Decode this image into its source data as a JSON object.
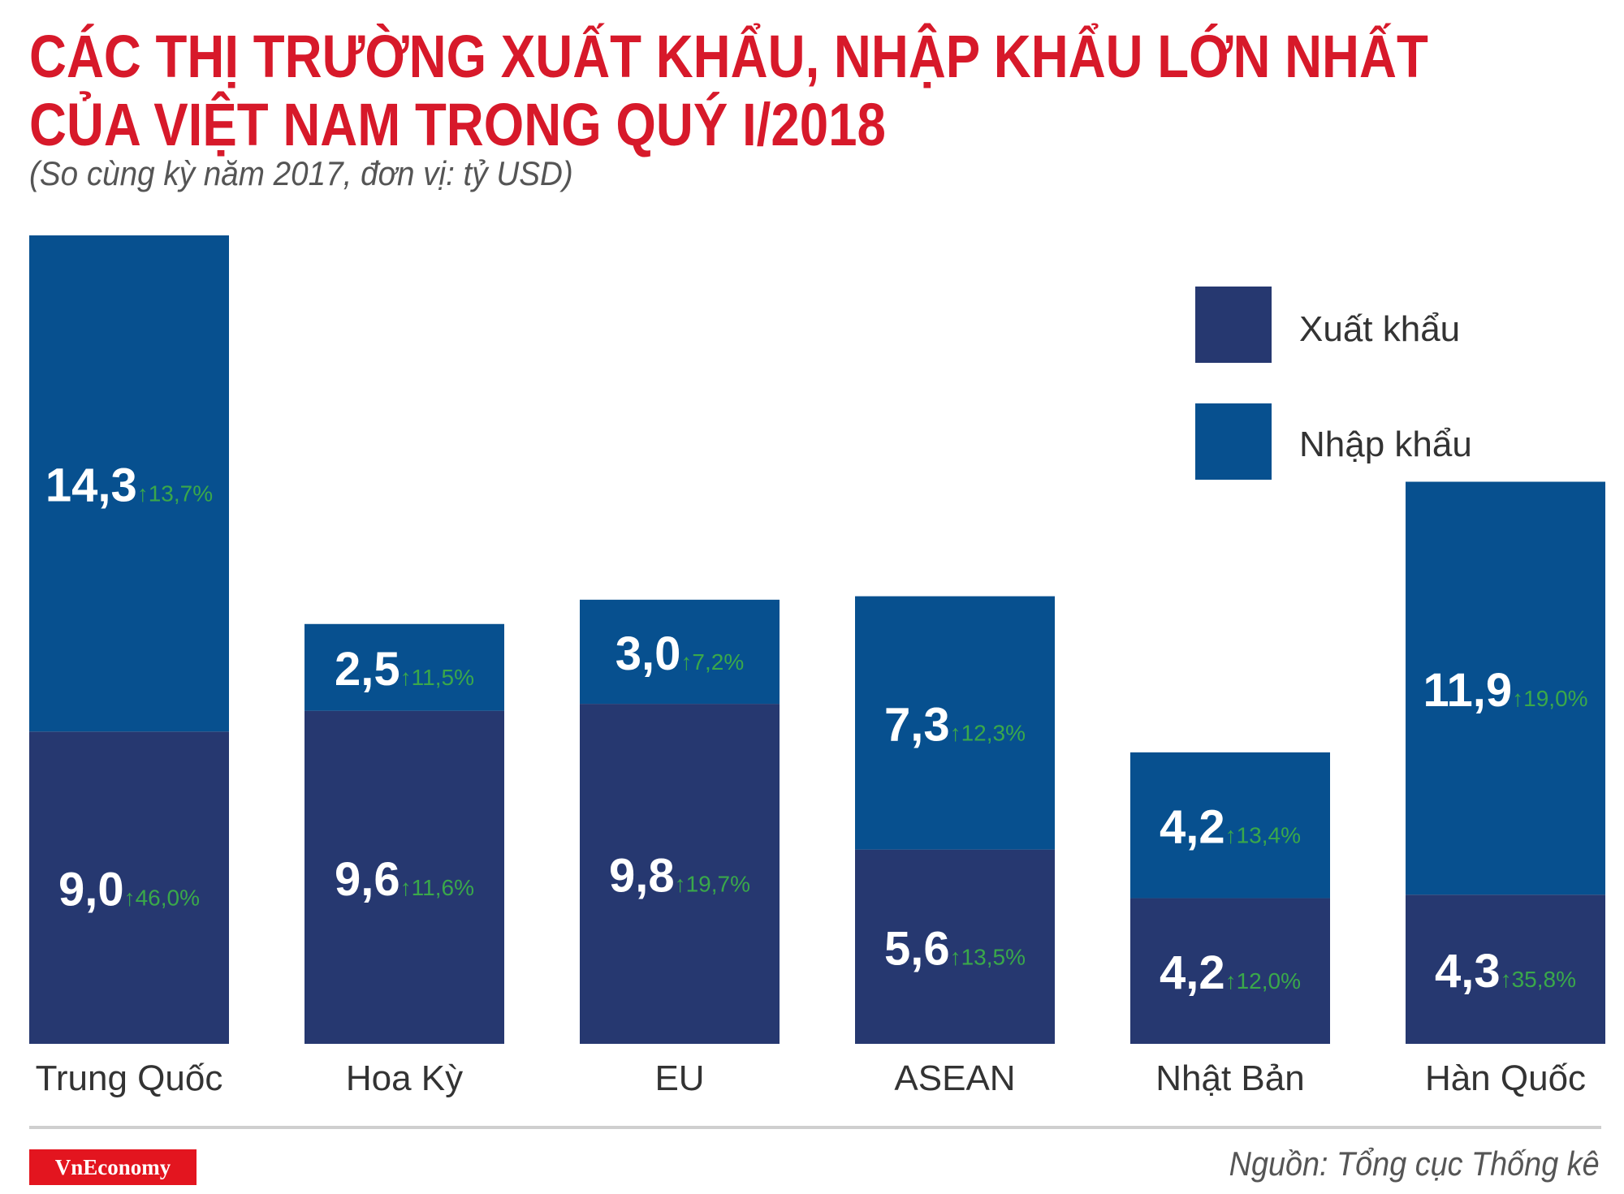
{
  "header": {
    "title_line1": "CÁC THỊ TRƯỜNG XUẤT KHẨU, NHẬP KHẨU LỚN NHẤT",
    "title_line2": "CỦA VIỆT NAM TRONG QUÝ I/2018",
    "subtitle": "(So cùng kỳ năm 2017, đơn vị: tỷ USD)"
  },
  "footer": {
    "logo": "VnEconomy",
    "source": "Nguồn: Tổng cục Thống kê"
  },
  "colors": {
    "export": "#263870",
    "import": "#07508f",
    "growth": "#3aa84a",
    "title": "#d7192a"
  },
  "chart_data": {
    "type": "bar",
    "stacked": true,
    "unit": "tỷ USD",
    "categories": [
      "Trung Quốc",
      "Hoa Kỳ",
      "EU",
      "ASEAN",
      "Nhật Bản",
      "Hàn Quốc"
    ],
    "series": [
      {
        "name": "Xuất khẩu",
        "values": [
          9.0,
          9.6,
          9.8,
          5.6,
          4.2,
          4.3
        ],
        "labels": [
          "9,0",
          "9,6",
          "9,8",
          "5,6",
          "4,2",
          "4,3"
        ],
        "growth": [
          "46,0%",
          "11,6%",
          "19,7%",
          "13,5%",
          "12,0%",
          "35,8%"
        ]
      },
      {
        "name": "Nhập khẩu",
        "values": [
          14.3,
          2.5,
          3.0,
          7.3,
          4.2,
          11.9
        ],
        "labels": [
          "14,3",
          "2,5",
          "3,0",
          "7,3",
          "4,2",
          "11,9"
        ],
        "growth": [
          "13,7%",
          "11,5%",
          "7,2%",
          "12,3%",
          "13,4%",
          "19,0%"
        ]
      }
    ],
    "growth_arrow": "↑",
    "legend": [
      "Xuất khẩu",
      "Nhập khẩu"
    ],
    "legend_position": "top-right",
    "ylim": [
      0,
      23.3
    ]
  }
}
